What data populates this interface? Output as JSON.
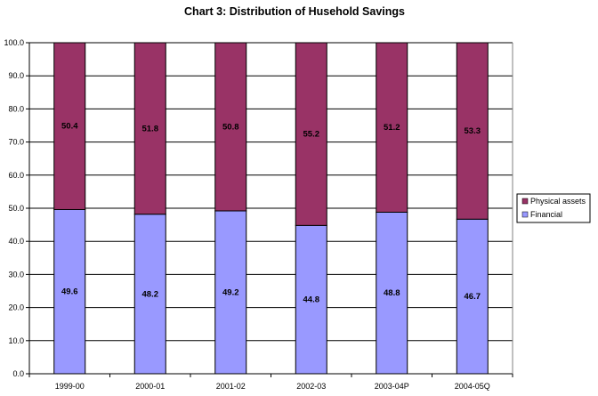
{
  "chart_data": {
    "type": "bar",
    "stacked": true,
    "title": "Chart 3: Distribution of Husehold Savings",
    "xlabel": "",
    "ylabel": "",
    "categories": [
      "1999-00",
      "2000-01",
      "2001-02",
      "2002-03",
      "2003-04P",
      "2004-05Q"
    ],
    "series": [
      {
        "name": "Financial",
        "values": [
          49.6,
          48.2,
          49.2,
          44.8,
          48.8,
          46.7
        ],
        "labels": [
          "49.6",
          "48.2",
          "49.2",
          "44.8",
          "48.8",
          "46.7"
        ],
        "color": "#9999ff"
      },
      {
        "name": "Physical assets",
        "values": [
          50.4,
          51.8,
          50.8,
          55.2,
          51.2,
          53.3
        ],
        "labels": [
          "50.4",
          "51.8",
          "50.8",
          "55.2",
          "51.2",
          "53.3"
        ],
        "color": "#993366"
      }
    ],
    "ylim": [
      0,
      100
    ],
    "yticks": [
      "0.0",
      "10.0",
      "20.0",
      "30.0",
      "40.0",
      "50.0",
      "60.0",
      "70.0",
      "80.0",
      "90.0",
      "100.0"
    ],
    "grid": true,
    "legend": "right"
  }
}
